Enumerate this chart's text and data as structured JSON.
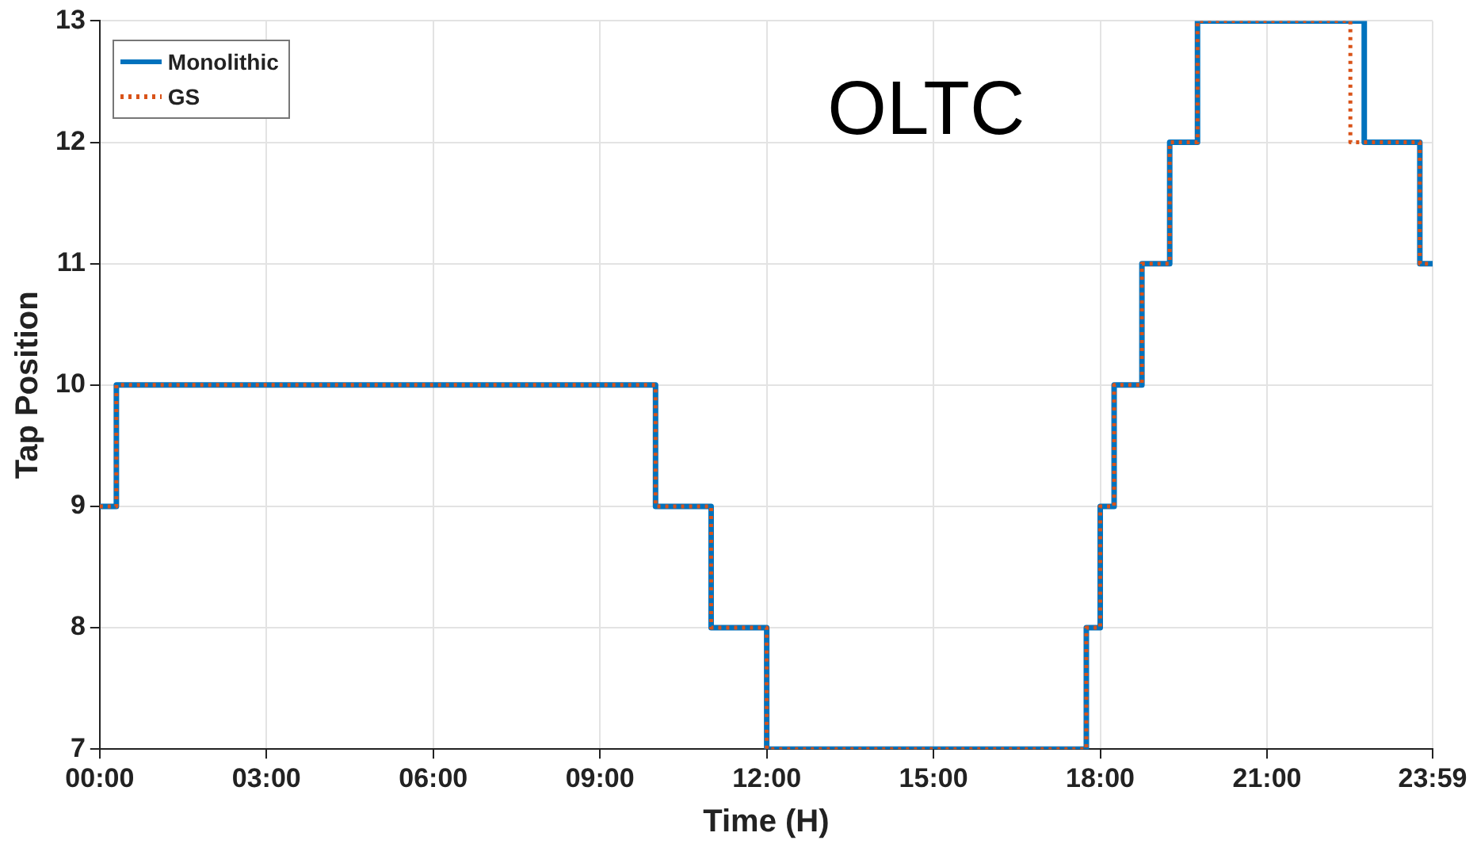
{
  "chart_data": {
    "type": "step",
    "title": "OLTC",
    "xlabel": "Time (H)",
    "ylabel": "Tap Position",
    "series": [
      {
        "name": "Monolithic",
        "color": "#0072bd",
        "line_style": "solid",
        "x": [
          0,
          0.3,
          10,
          11,
          12,
          17.75,
          18,
          18.25,
          18.75,
          19.25,
          19.75,
          22.75,
          23.75,
          23.98
        ],
        "values": [
          9,
          10,
          9,
          8,
          7,
          8,
          9,
          10,
          11,
          12,
          13,
          12,
          11,
          11
        ]
      },
      {
        "name": "GS",
        "color": "#d95319",
        "line_style": "dotted",
        "x": [
          0,
          0.3,
          10,
          11,
          12,
          17.75,
          18,
          18.25,
          18.75,
          19.25,
          19.75,
          22.5,
          23.75,
          23.98
        ],
        "values": [
          9,
          10,
          9,
          8,
          7,
          8,
          9,
          10,
          11,
          12,
          13,
          12,
          11,
          11
        ]
      }
    ],
    "xlim": [
      0,
      23.98
    ],
    "xticks": [
      {
        "value": 0,
        "label": "00:00"
      },
      {
        "value": 3,
        "label": "03:00"
      },
      {
        "value": 6,
        "label": "06:00"
      },
      {
        "value": 9,
        "label": "09:00"
      },
      {
        "value": 12,
        "label": "12:00"
      },
      {
        "value": 15,
        "label": "15:00"
      },
      {
        "value": 18,
        "label": "18:00"
      },
      {
        "value": 21,
        "label": "21:00"
      },
      {
        "value": 23.98,
        "label": "23:59"
      }
    ],
    "ylim": [
      7,
      13
    ],
    "yticks": [
      7,
      8,
      9,
      10,
      11,
      12,
      13
    ],
    "grid": true,
    "legend": "top left",
    "marker": "none"
  }
}
